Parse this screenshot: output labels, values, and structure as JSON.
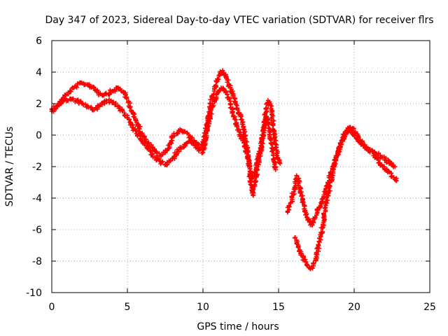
{
  "chart_data": {
    "type": "scatter",
    "title": "Day 347 of 2023, Sidereal Day-to-day VTEC variation (SDTVAR) for receiver flrs",
    "xlabel": "GPS time / hours",
    "ylabel": "SDTVAR / TECUs",
    "xlim": [
      0,
      25
    ],
    "ylim": [
      -10,
      6
    ],
    "xticks": [
      0,
      5,
      10,
      15,
      20,
      25
    ],
    "yticks": [
      -10,
      -8,
      -6,
      -4,
      -2,
      0,
      2,
      4,
      6
    ],
    "grid": true,
    "marker": "+",
    "color": "#ff0000",
    "series": [
      {
        "x": [
          0.0,
          0.4,
          0.8,
          1.2,
          1.6,
          2.0,
          2.4,
          2.8,
          3.2,
          3.6,
          4.0,
          4.4,
          4.8,
          5.2,
          5.6,
          6.0,
          6.4,
          6.8,
          7.2,
          7.6,
          7.8,
          8.0,
          8.4,
          8.8,
          9.2,
          9.6,
          10.0,
          10.2,
          10.5,
          10.8,
          11.1,
          11.3,
          11.6,
          12.0,
          12.3,
          12.6,
          12.9,
          13.1,
          13.3,
          13.6,
          13.9,
          14.1,
          14.3,
          14.5,
          14.7,
          14.9,
          15.1
        ],
        "y": [
          1.5,
          1.9,
          2.4,
          2.8,
          3.1,
          3.3,
          3.2,
          3.0,
          2.6,
          2.6,
          2.8,
          3.0,
          2.7,
          1.8,
          0.8,
          0.0,
          -0.5,
          -1.0,
          -1.3,
          -1.0,
          -0.6,
          -0.1,
          0.3,
          0.2,
          -0.2,
          -0.6,
          -0.7,
          0.3,
          2.0,
          3.1,
          3.8,
          4.1,
          3.5,
          2.5,
          1.6,
          0.8,
          -0.8,
          -2.5,
          -3.8,
          -2.2,
          -0.5,
          1.0,
          2.2,
          1.7,
          0.2,
          -1.3,
          -1.8
        ]
      },
      {
        "x": [
          0.0,
          0.4,
          0.8,
          1.2,
          1.6,
          2.0,
          2.4,
          2.8,
          3.2,
          3.6,
          4.0,
          4.4,
          4.8,
          5.2,
          5.6,
          6.0,
          6.4,
          6.8,
          7.2,
          7.6,
          8.0,
          8.4,
          8.8,
          9.2,
          9.6,
          10.0,
          10.3,
          10.6,
          10.9,
          11.2,
          11.5,
          11.8,
          12.1,
          12.4,
          12.7,
          13.0,
          13.2,
          13.5,
          13.8,
          14.0,
          14.2,
          14.4,
          14.6,
          14.8
        ],
        "y": [
          1.6,
          1.9,
          2.2,
          2.3,
          2.2,
          2.0,
          1.8,
          1.6,
          1.9,
          2.2,
          2.1,
          1.8,
          1.4,
          0.8,
          0.1,
          -0.4,
          -0.9,
          -1.4,
          -1.7,
          -1.9,
          -1.5,
          -0.9,
          -0.6,
          -0.4,
          -0.8,
          -1.1,
          0.5,
          1.8,
          2.6,
          3.0,
          2.8,
          2.0,
          1.0,
          0.2,
          -0.5,
          -1.5,
          -2.8,
          -2.2,
          -0.8,
          0.3,
          1.2,
          0.4,
          -1.0,
          -2.2
        ]
      },
      {
        "x": [
          16.1,
          16.3,
          16.5,
          16.7,
          16.9,
          17.1,
          17.3,
          17.5,
          17.7,
          17.9,
          18.1,
          18.3,
          18.5,
          18.7,
          18.9,
          19.1,
          19.3,
          19.5,
          19.7,
          19.9,
          20.1,
          20.4,
          20.7,
          21.0,
          21.3,
          21.6,
          21.9,
          22.2,
          22.5,
          22.8
        ],
        "y": [
          -6.5,
          -7.1,
          -7.5,
          -7.9,
          -8.3,
          -8.5,
          -8.3,
          -7.7,
          -6.8,
          -5.9,
          -4.6,
          -3.6,
          -2.7,
          -1.9,
          -1.2,
          -0.6,
          -0.1,
          0.2,
          0.5,
          0.4,
          0.1,
          -0.3,
          -0.6,
          -0.9,
          -1.2,
          -1.6,
          -2.0,
          -2.3,
          -2.6,
          -2.9
        ]
      },
      {
        "x": [
          15.6,
          15.8,
          16.0,
          16.2,
          16.4,
          16.6,
          16.8,
          17.0,
          17.2,
          17.4,
          17.6,
          17.8,
          18.0,
          18.2,
          18.4,
          18.6,
          18.8,
          19.0,
          19.2,
          19.4,
          19.6,
          19.8,
          20.0,
          20.3,
          20.6,
          20.9,
          21.2,
          21.5,
          21.8,
          22.1,
          22.4,
          22.7
        ],
        "y": [
          -4.9,
          -4.3,
          -3.6,
          -2.6,
          -3.3,
          -4.2,
          -4.9,
          -5.4,
          -5.7,
          -5.2,
          -4.7,
          -4.3,
          -3.8,
          -3.2,
          -2.6,
          -2.0,
          -1.4,
          -0.9,
          -0.3,
          0.1,
          0.4,
          0.3,
          0.0,
          -0.4,
          -0.7,
          -0.9,
          -1.0,
          -1.2,
          -1.4,
          -1.6,
          -1.8,
          -2.0
        ]
      }
    ]
  }
}
